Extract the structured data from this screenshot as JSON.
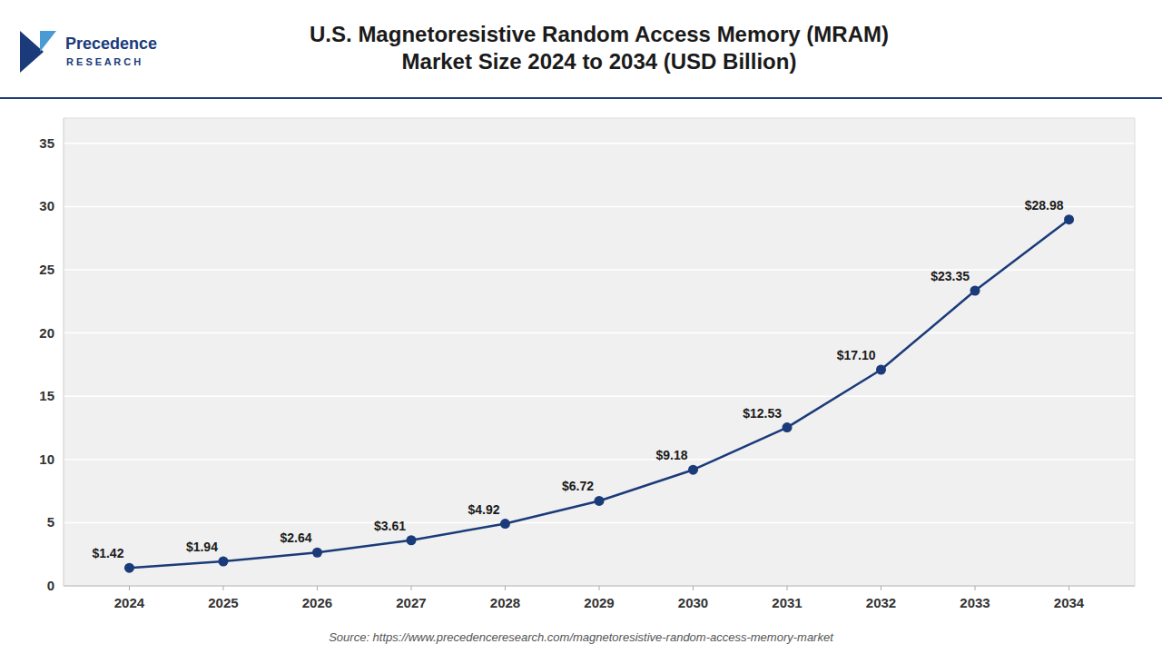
{
  "chart_data": {
    "type": "line",
    "title": "U.S. Magnetoresistive Random Access Memory (MRAM)\nMarket Size 2024 to 2034 (USD Billion)",
    "annotations": [
      "Source: https://www.precedenceresearch.com/magnetoresistive-random-access-memory-market",
      "Precedence",
      "R E S E A R C H"
    ],
    "x": [
      2024,
      2025,
      2026,
      2027,
      2028,
      2029,
      2030,
      2031,
      2032,
      2033,
      2034
    ],
    "values": [
      1.42,
      1.94,
      2.64,
      3.61,
      4.92,
      6.72,
      9.18,
      12.53,
      17.1,
      23.35,
      28.98
    ],
    "value_labels": [
      "$1.42",
      "$1.94",
      "$2.64",
      "$3.61",
      "$4.92",
      "$6.72",
      "$9.18",
      "$12.53",
      "$17.10",
      "$23.35",
      "$28.98"
    ],
    "color": "#1a3a7a",
    "marker": "circle",
    "line_style": "solid",
    "xlim": [
      2023.3,
      2034.7
    ],
    "xticks": [
      2024,
      2025,
      2026,
      2027,
      2028,
      2029,
      2030,
      2031,
      2032,
      2033,
      2034
    ],
    "ylim": [
      0,
      37
    ],
    "yticks": [
      0,
      5,
      10,
      15,
      20,
      25,
      30,
      35
    ],
    "grid": true,
    "data_labels": true
  }
}
